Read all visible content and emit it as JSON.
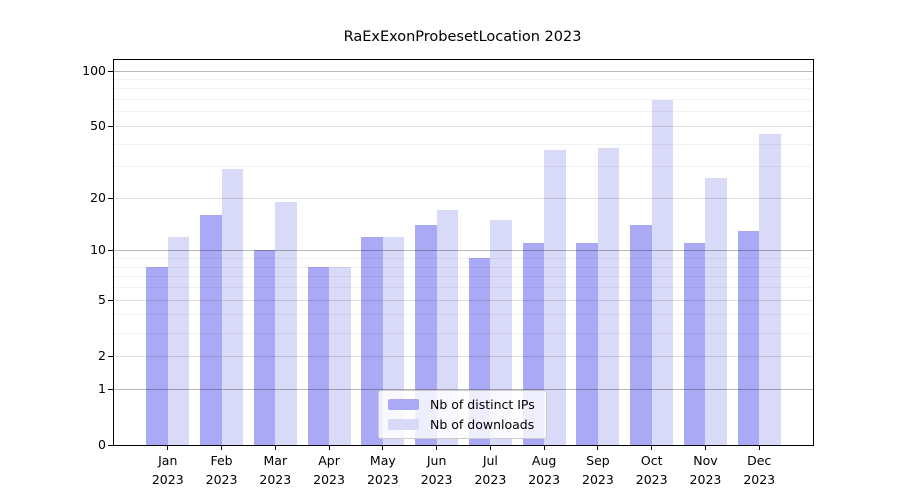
{
  "title": "RaExExonProbesetLocation 2023",
  "chart_data": {
    "type": "bar",
    "title": "RaExExonProbesetLocation 2023",
    "categories": [
      "Jan",
      "Feb",
      "Mar",
      "Apr",
      "May",
      "Jun",
      "Jul",
      "Aug",
      "Sep",
      "Oct",
      "Nov",
      "Dec"
    ],
    "x_tick_second_line": "2023",
    "series": [
      {
        "name": "Nb of distinct IPs",
        "color": "#a9a9f5",
        "values": [
          8,
          16,
          10,
          8,
          12,
          14,
          9,
          11,
          11,
          14,
          11,
          13
        ]
      },
      {
        "name": "Nb of downloads",
        "color": "#d9d9f8",
        "values": [
          12,
          29,
          19,
          8,
          12,
          17,
          15,
          37,
          38,
          69,
          26,
          45
        ]
      }
    ],
    "y_scale": "log10(1+x)",
    "y_major_ticks": [
      0,
      1,
      2,
      5,
      10,
      20,
      50,
      100
    ],
    "y_decade_gridlines": [
      1,
      10,
      100
    ],
    "y_mid_gridlines": [
      2,
      5,
      20,
      50
    ],
    "y_minor_gridlines": [
      3,
      4,
      6,
      7,
      8,
      9,
      30,
      40,
      60,
      70,
      80,
      90
    ],
    "ylim": [
      0,
      114
    ],
    "grid": "on",
    "grid_above_bars": true,
    "legend_position": "lower center",
    "xlabel": "",
    "ylabel": ""
  },
  "colors": {
    "background": "#ffffff",
    "bar_distinct_ips": "#a9a9f5",
    "bar_downloads": "#d9d9f8",
    "grid_decade": "rgba(0,0,0,0.28)",
    "grid_mid": "rgba(0,0,0,0.12)",
    "grid_minor": "rgba(0,0,0,0.05)",
    "spine": "#000000",
    "text": "#000000",
    "legend_border": "#cccccc"
  }
}
